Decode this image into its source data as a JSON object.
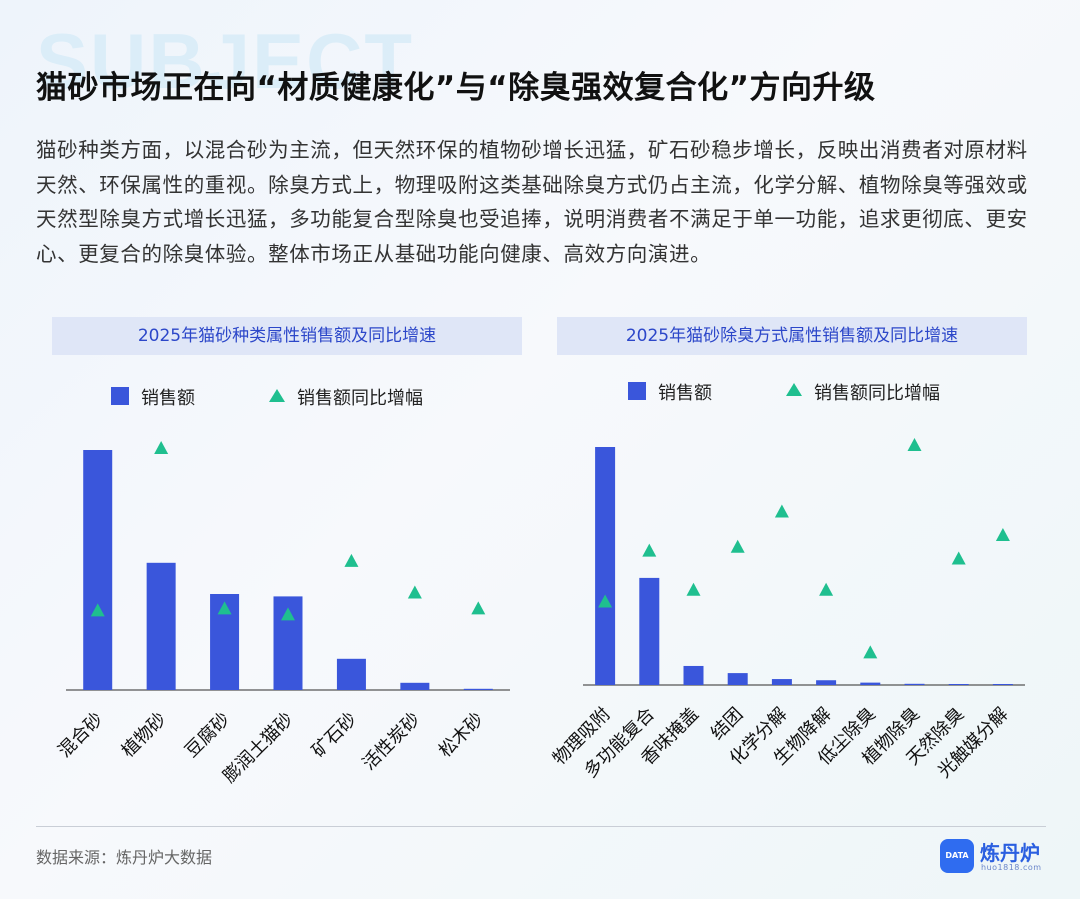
{
  "watermark": "SUBJECT",
  "title": "猫砂市场正在向“材质健康化”与“除臭强效复合化”方向升级",
  "paragraph": "猫砂种类方面，以混合砂为主流，但天然环保的植物砂增长迅猛，矿石砂稳步增长，反映出消费者对原材料天然、环保属性的重视。除臭方式上，物理吸附这类基础除臭方式仍占主流，化学分解、植物除臭等强效或天然型除臭方式增长迅猛，多功能复合型除臭也受追捧，说明消费者不满足于单一功能，追求更彻底、更安心、更复合的除臭体验。整体市场正从基础功能向健康、高效方向演进。",
  "legend": {
    "bar_label": "销售额",
    "marker_label": "销售额同比增幅"
  },
  "colors": {
    "bar": "#3a56db",
    "marker": "#1fbf8f",
    "title_bg": "#dfe6f7",
    "title_text": "#2c47c9"
  },
  "chart_data": [
    {
      "type": "bar",
      "title": "2025年猫砂种类属性销售额及同比增速",
      "categories": [
        "混合砂",
        "植物砂",
        "豆腐砂",
        "膨润土猫砂",
        "矿石砂",
        "活性炭砂",
        "松木砂"
      ],
      "series": [
        {
          "name": "销售额",
          "mark": "bar",
          "values": [
            100,
            53,
            40,
            39,
            13,
            3,
            0.5
          ]
        },
        {
          "name": "销售额同比增幅",
          "mark": "triangle",
          "values": [
            18,
            100,
            19,
            16,
            43,
            27,
            19
          ]
        }
      ],
      "y_axis_shown": false,
      "legend_position": "top"
    },
    {
      "type": "bar",
      "title": "2025年猫砂除臭方式属性销售额及同比增速",
      "categories": [
        "物理吸附",
        "多功能复合",
        "香味掩盖",
        "结团",
        "化学分解",
        "生物降解",
        "低尘除臭",
        "植物除臭",
        "天然除臭",
        "光触媒分解"
      ],
      "series": [
        {
          "name": "销售额",
          "mark": "bar",
          "values": [
            100,
            45,
            8,
            5,
            2.5,
            2,
            1,
            0.5,
            0.2,
            0.2
          ]
        },
        {
          "name": "销售额同比增幅",
          "mark": "triangle",
          "values": [
            17,
            30,
            20,
            31,
            40,
            20,
            4,
            57,
            28,
            34
          ]
        }
      ],
      "y_axis_shown": false,
      "legend_position": "top"
    }
  ],
  "footer": {
    "source": "数据来源：炼丹炉大数据",
    "logo_name": "炼丹炉",
    "logo_badge": "DATA",
    "logo_url": "huo1818.com"
  }
}
